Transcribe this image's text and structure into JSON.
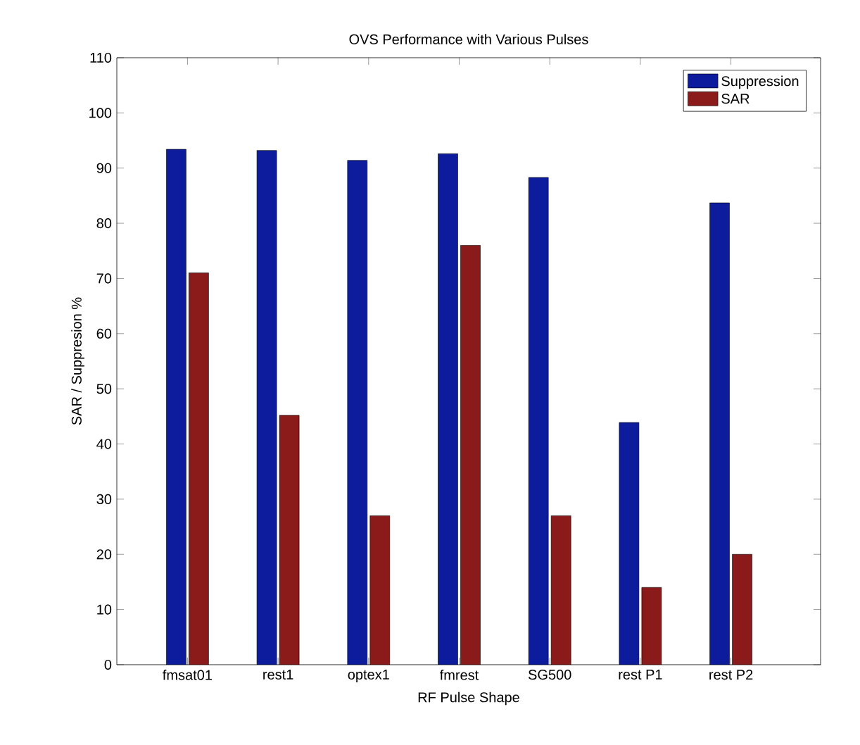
{
  "chart_data": {
    "type": "bar",
    "title": "OVS Performance with Various Pulses",
    "xlabel": "RF Pulse Shape",
    "ylabel": "SAR / Suppresion %",
    "categories": [
      "fmsat01",
      "rest1",
      "optex1",
      "fmrest",
      "SG500",
      "rest P1",
      "rest P2"
    ],
    "series": [
      {
        "name": "Suppression",
        "color": "#0c1c9c",
        "values": [
          93.4,
          93.2,
          91.4,
          92.6,
          88.3,
          43.9,
          83.7
        ]
      },
      {
        "name": "SAR",
        "color": "#8b1a1a",
        "values": [
          71,
          45.2,
          27,
          76,
          27,
          14,
          20
        ]
      }
    ],
    "ylim": [
      0,
      110
    ],
    "yticks": [
      0,
      10,
      20,
      30,
      40,
      50,
      60,
      70,
      80,
      90,
      100,
      110
    ],
    "legend": "top right",
    "grid": false
  }
}
